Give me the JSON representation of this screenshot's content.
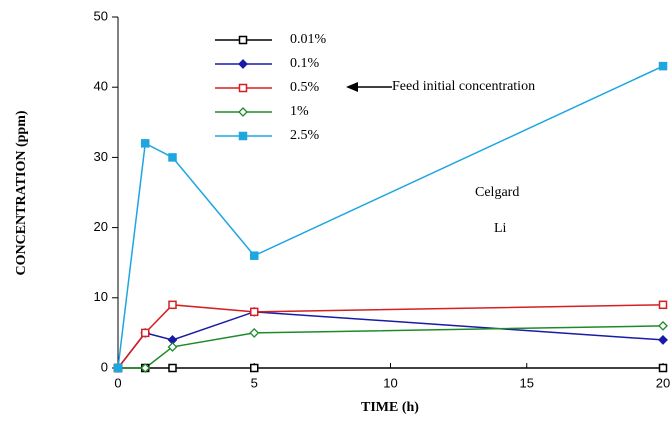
{
  "chart_data": {
    "type": "line",
    "x": [
      0,
      1,
      2,
      5,
      20
    ],
    "series": [
      {
        "name": "0.01%",
        "color": "#000000",
        "marker": "square",
        "filled": false,
        "values": [
          0,
          0,
          0,
          0,
          0
        ]
      },
      {
        "name": "0.1%",
        "color": "#1a1aa8",
        "marker": "diamond",
        "filled": true,
        "values": [
          0,
          5,
          4,
          8,
          4
        ]
      },
      {
        "name": "0.5%",
        "color": "#d42020",
        "marker": "square",
        "filled": false,
        "values": [
          0,
          5,
          9,
          8,
          9
        ]
      },
      {
        "name": "1%",
        "color": "#1f8a2a",
        "marker": "diamond",
        "filled": false,
        "values": [
          0,
          0,
          3,
          5,
          6
        ]
      },
      {
        "name": "2.5%",
        "color": "#1ea6e0",
        "marker": "square",
        "filled": true,
        "values": [
          0,
          32,
          30,
          16,
          43
        ]
      }
    ],
    "xlim": [
      0,
      20
    ],
    "xticks": [
      0,
      5,
      10,
      15,
      20
    ],
    "ylim": [
      0,
      50
    ],
    "yticks": [
      0,
      10,
      20,
      30,
      40,
      50
    ],
    "xlabel": "TIME (h)",
    "ylabel": "CONCENTRATION (ppm)",
    "annotations": [
      "Feed initial concentration",
      "Celgard",
      "Li"
    ],
    "grid": false
  }
}
